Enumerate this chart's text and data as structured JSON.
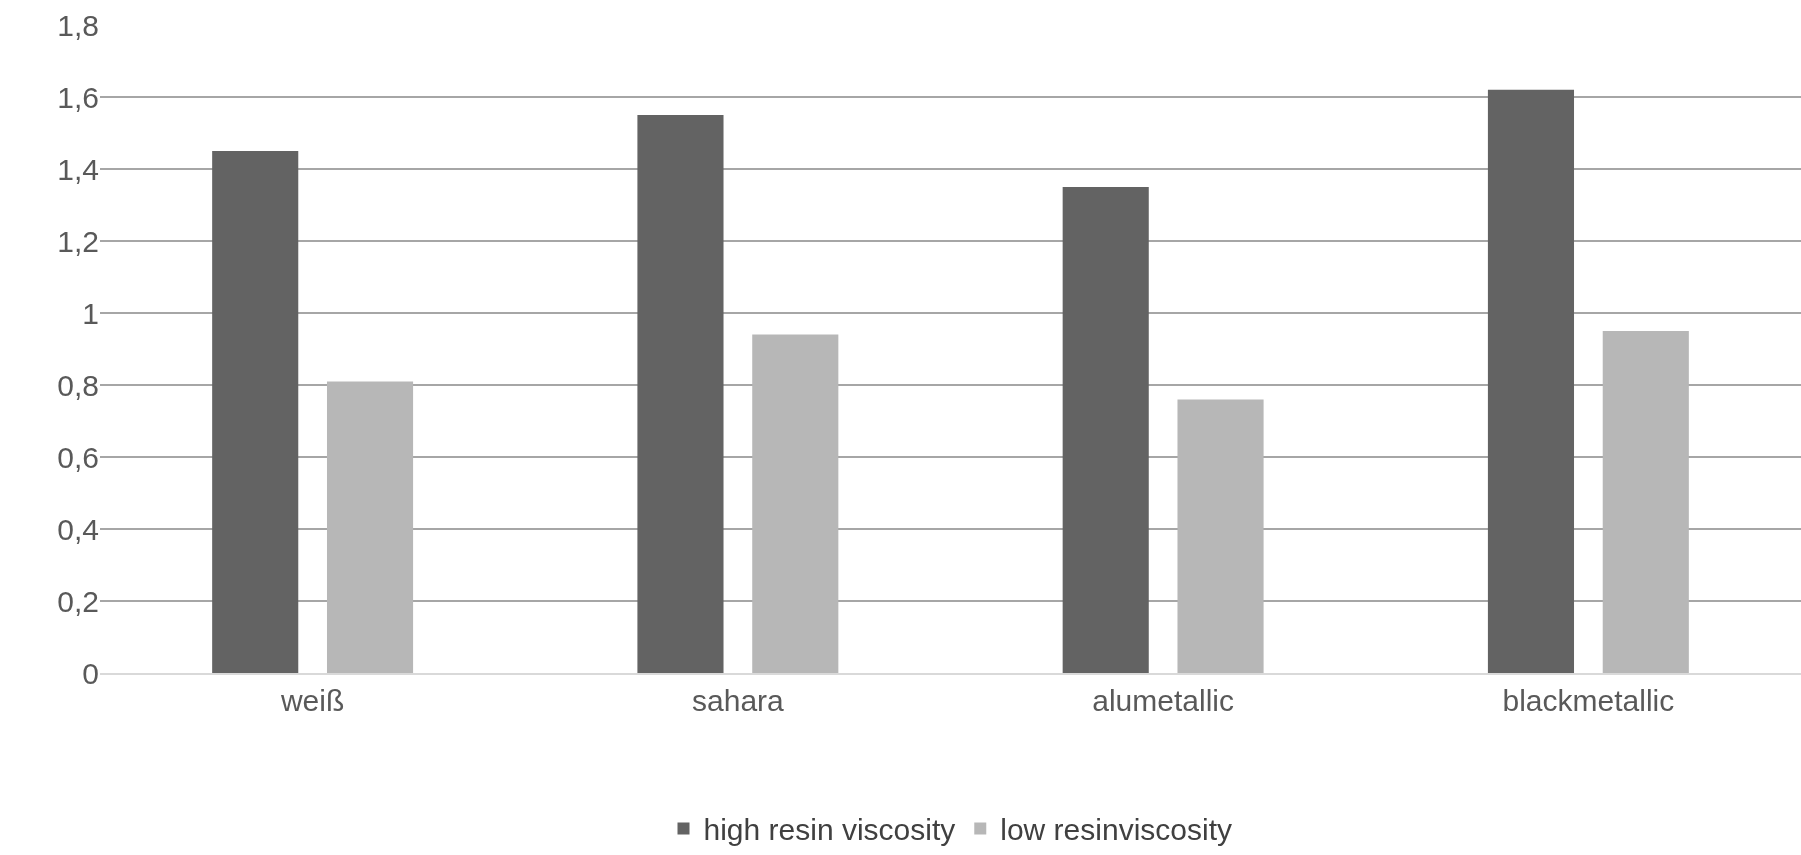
{
  "chart_data": {
    "type": "bar",
    "categories": [
      "weiß",
      "sahara",
      "alumetallic",
      "blackmetallic"
    ],
    "series": [
      {
        "name": "high resin viscosity",
        "color": "#636363",
        "values": [
          1.45,
          1.55,
          1.35,
          1.62
        ]
      },
      {
        "name": "low resinviscosity",
        "color": "#b7b7b7",
        "values": [
          0.81,
          0.94,
          0.76,
          0.95
        ]
      }
    ],
    "ylim": [
      0,
      1.8
    ],
    "yticks": [
      0,
      {
        "value": 0.2,
        "label": "0,2"
      },
      {
        "value": 0.4,
        "label": "0,4"
      },
      {
        "value": 0.6,
        "label": "0,6"
      },
      {
        "value": 0.8,
        "label": "0,8"
      },
      1,
      {
        "value": 1.2,
        "label": "1,2"
      },
      {
        "value": 1.4,
        "label": "1,4"
      },
      {
        "value": 1.6,
        "label": "1,6"
      },
      {
        "value": 1.8,
        "label": "1,8"
      }
    ],
    "grid": "y",
    "legend": "bottom"
  }
}
